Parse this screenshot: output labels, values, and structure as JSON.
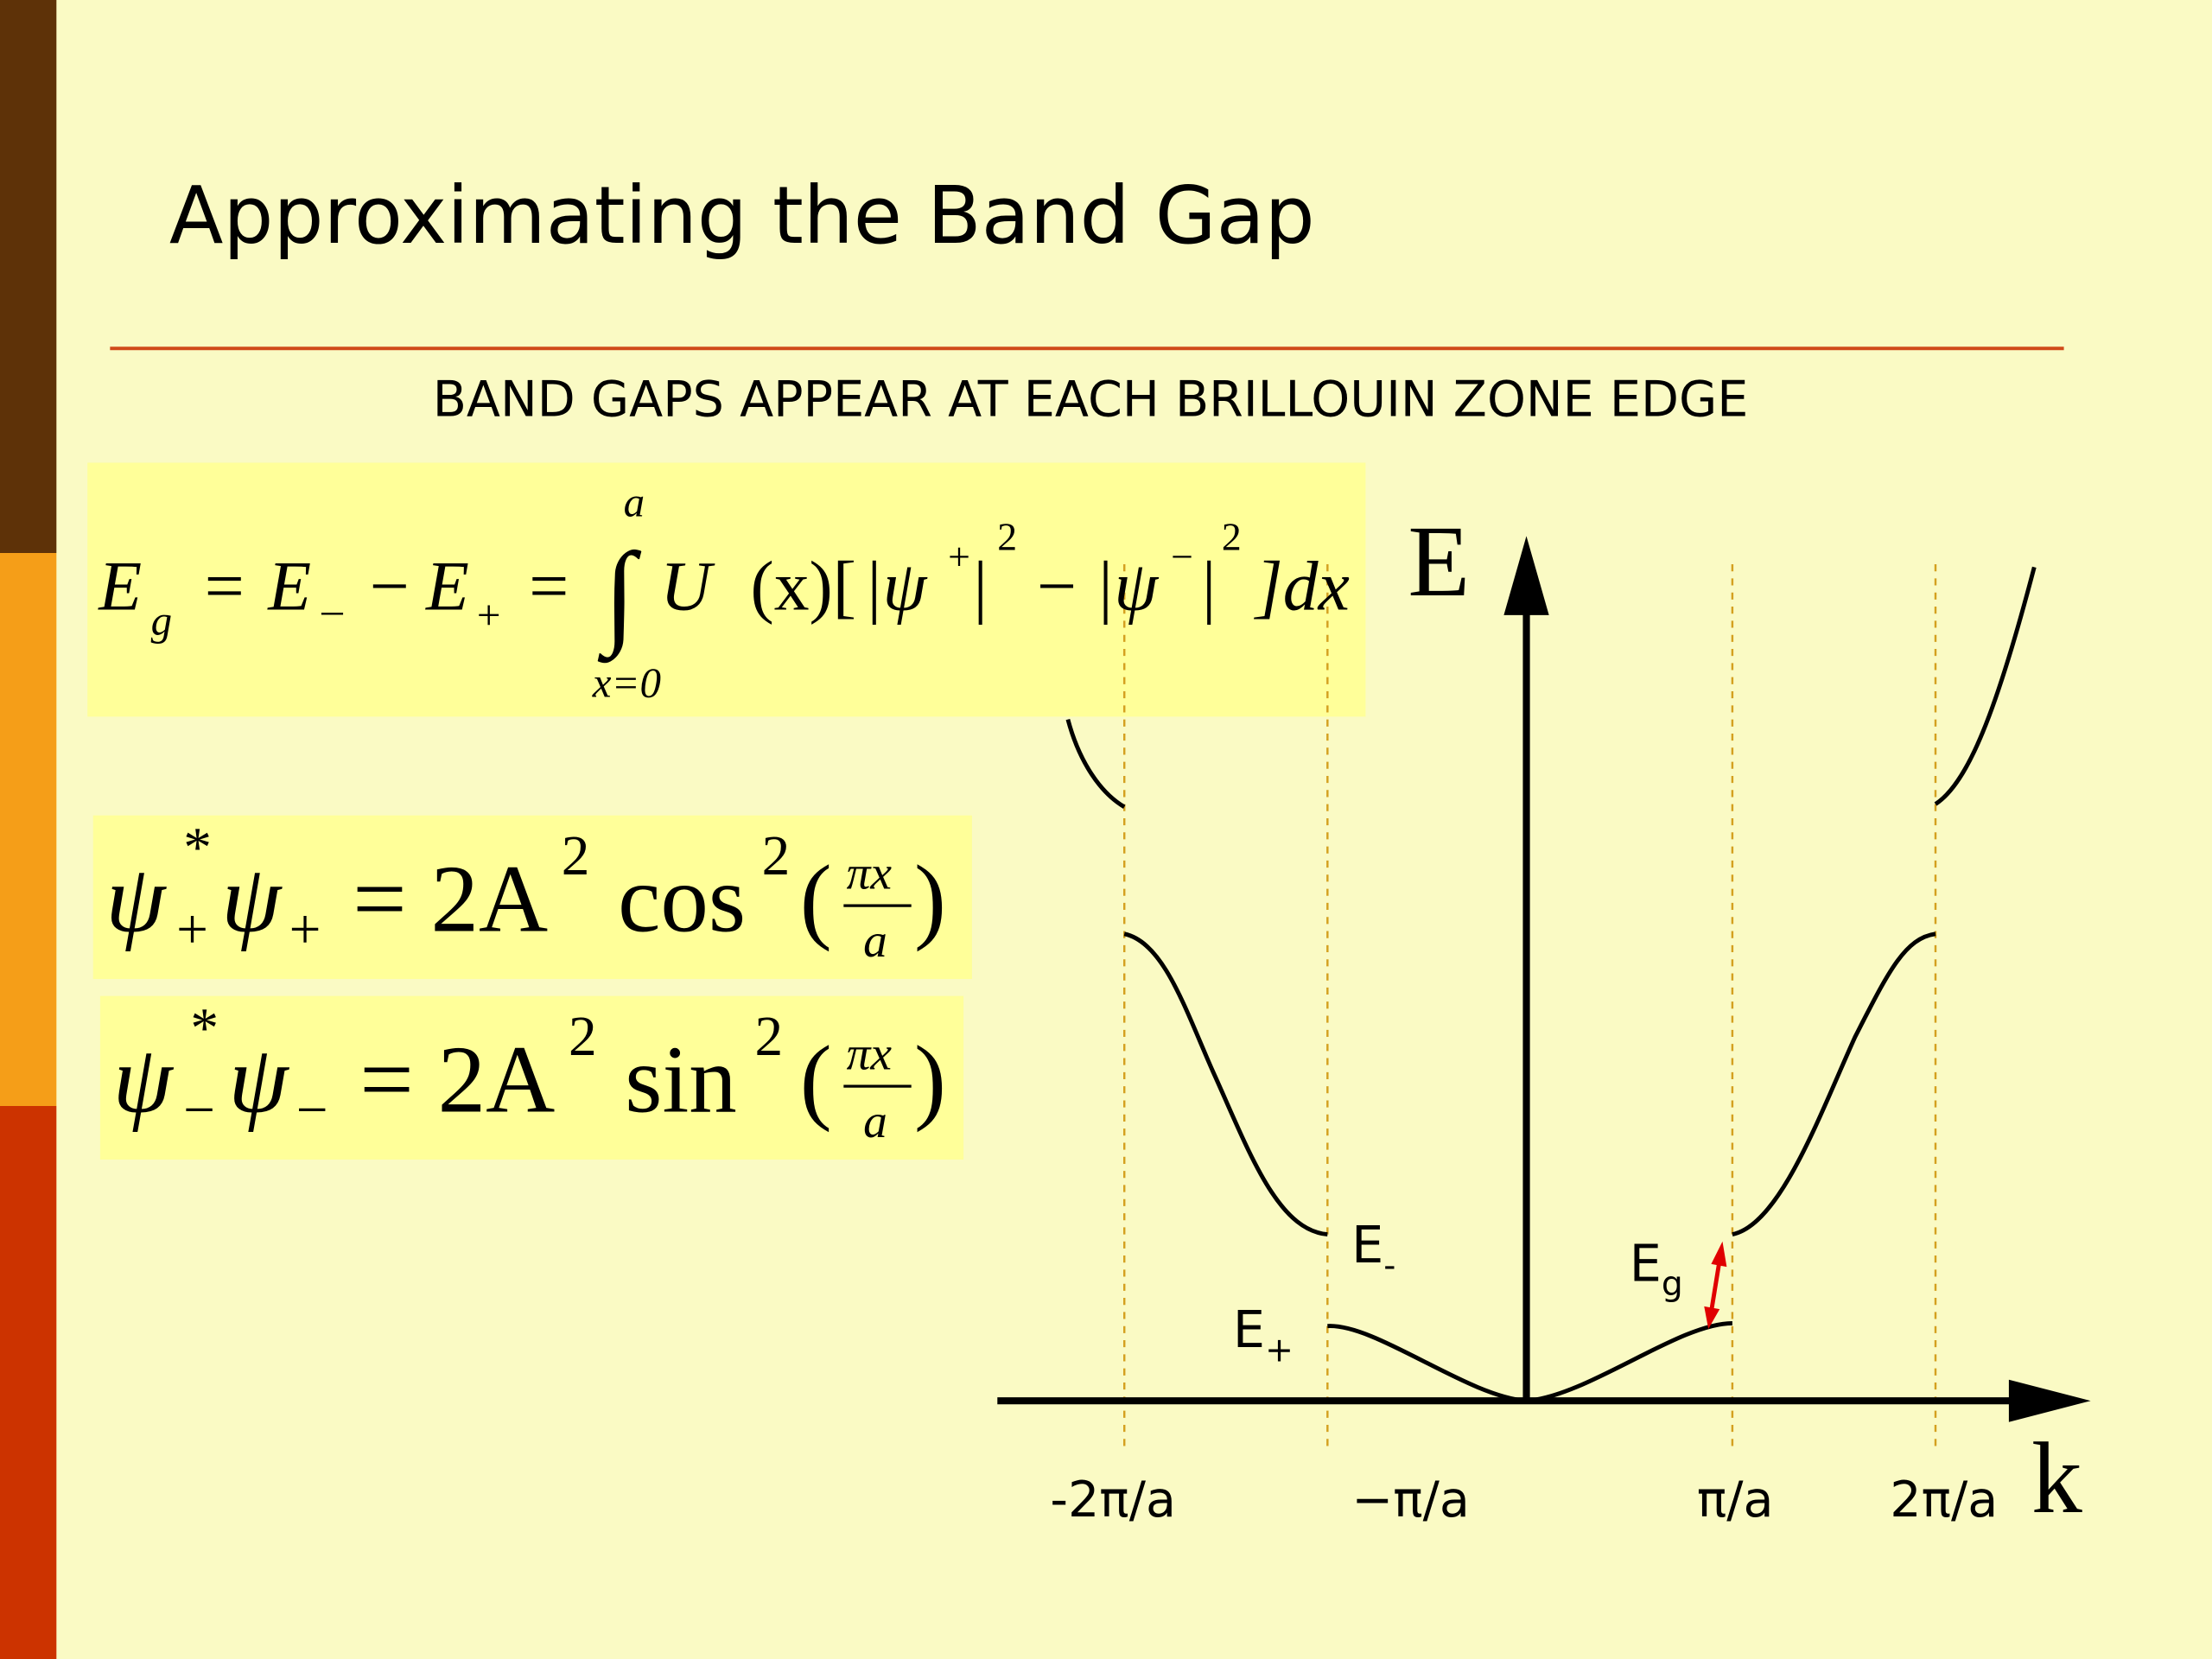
{
  "header": {
    "title": "Approximating the Band Gap",
    "subtitle": "BAND GAPS APPEAR AT EACH BRILLOUIN ZONE EDGE"
  },
  "equations": [
    {
      "parts": [
        "E",
        "g",
        "=",
        "E",
        "–",
        "−",
        "E",
        "+",
        "=",
        "∫",
        "a",
        "x=0",
        "U",
        "(x)[",
        "|ψ",
        "+",
        "|",
        "2",
        "−",
        "|ψ",
        "−",
        "|",
        "2",
        "]dx"
      ]
    },
    {
      "parts": [
        "ψ",
        "*",
        "+",
        "ψ",
        "+",
        "= 2A",
        "2",
        "cos",
        "2",
        "(",
        "πx",
        "a",
        ")"
      ]
    },
    {
      "parts": [
        "ψ",
        "*",
        "−",
        "ψ",
        "−",
        "= 2A",
        "2",
        "sin",
        "2",
        "(",
        "πx",
        "a",
        ")"
      ]
    }
  ],
  "diagram": {
    "y_axis_label": "E",
    "x_axis_label": "k",
    "k_ticks": [
      "-2π/a",
      "−π/a",
      "π/a",
      "2π/a"
    ],
    "band_labels": [
      {
        "text": "E",
        "subscript": "-"
      },
      {
        "text": "E",
        "subscript": "+"
      },
      {
        "text": "E",
        "subscript": "g"
      }
    ]
  }
}
